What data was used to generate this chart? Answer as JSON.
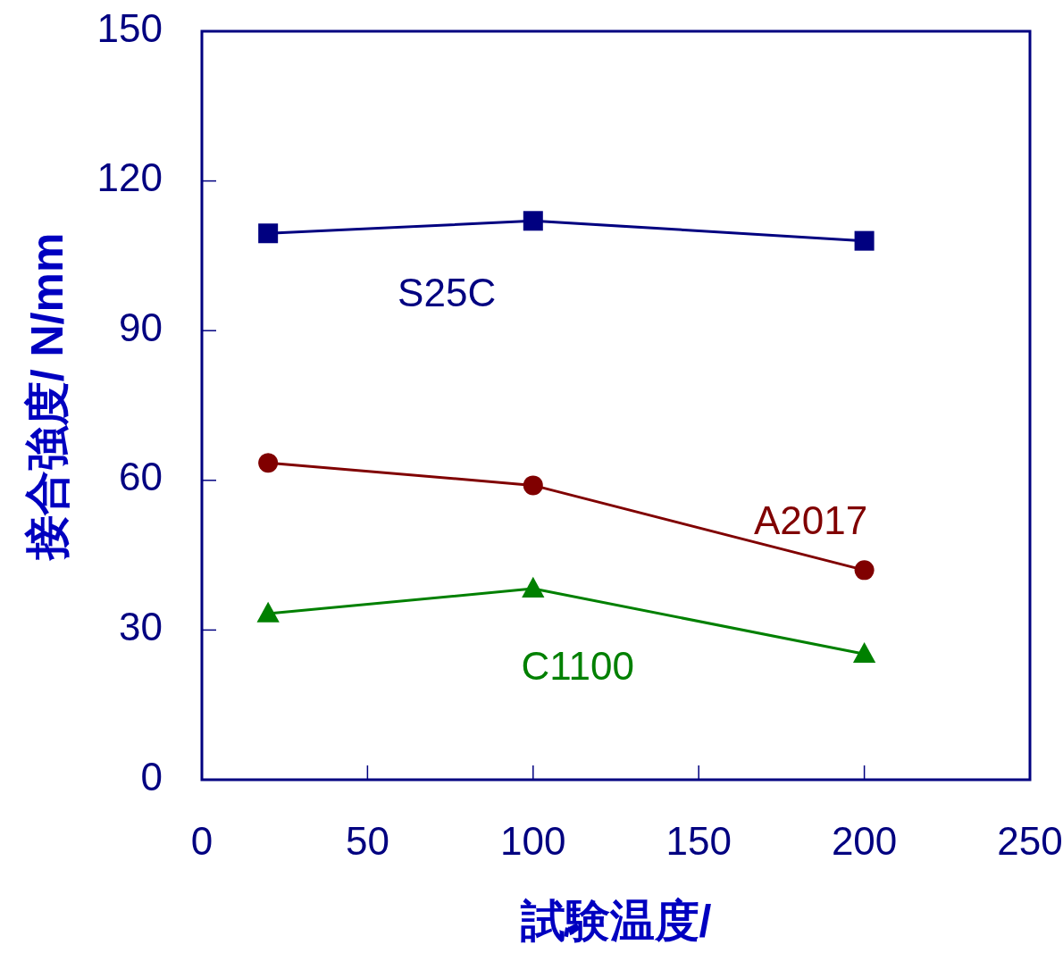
{
  "chart_data": {
    "type": "line",
    "xlabel": "試験温度/",
    "ylabel": "接合強度/ N/mm",
    "x": [
      20,
      100,
      200
    ],
    "series": [
      {
        "name": "S25C",
        "color": "#000080",
        "marker": "square",
        "values": [
          109.5,
          112,
          108
        ]
      },
      {
        "name": "A2017",
        "color": "#800000",
        "marker": "circle",
        "values": [
          63.5,
          59,
          42
        ]
      },
      {
        "name": "C1100",
        "color": "#008000",
        "marker": "triangle",
        "values": [
          33.3,
          38.3,
          25.2
        ]
      }
    ],
    "xlim": [
      0,
      250
    ],
    "xticks": [
      0,
      50,
      100,
      150,
      200,
      250
    ],
    "ylim": [
      0,
      150
    ],
    "yticks": [
      0,
      30,
      60,
      90,
      120,
      150
    ],
    "grid": false
  }
}
